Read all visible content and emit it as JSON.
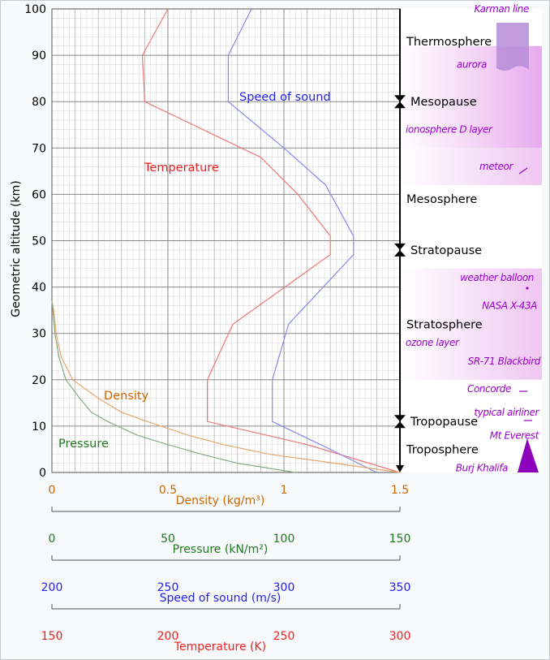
{
  "chart_data": {
    "type": "line",
    "y_axis": {
      "label": "Geometric altitude (km)",
      "range": [
        0,
        100
      ],
      "ticks": [
        "0",
        "10",
        "20",
        "30",
        "40",
        "50",
        "60",
        "70",
        "80",
        "90",
        "100"
      ]
    },
    "x_scale": {
      "range": [
        0,
        1.5
      ]
    },
    "grid": true,
    "series": [
      {
        "name": "Temperature",
        "color": "#ee7777",
        "label_color": "#ee2222",
        "points": [
          [
            1.5,
            0
          ],
          [
            1.1,
            6
          ],
          [
            0.67,
            11
          ],
          [
            0.67,
            20
          ],
          [
            0.78,
            32
          ],
          [
            1.2,
            47
          ],
          [
            1.2,
            51
          ],
          [
            1.06,
            60
          ],
          [
            0.9,
            68
          ],
          [
            0.4,
            80
          ],
          [
            0.39,
            90
          ],
          [
            0.5,
            100
          ]
        ]
      },
      {
        "name": "Speed of sound",
        "color": "#8888ee",
        "label_color": "#2222ee",
        "points": [
          [
            1.4,
            0
          ],
          [
            1.2,
            5
          ],
          [
            0.95,
            11
          ],
          [
            0.95,
            20
          ],
          [
            1.02,
            32
          ],
          [
            1.3,
            47
          ],
          [
            1.3,
            51
          ],
          [
            1.18,
            62
          ],
          [
            1.0,
            70
          ],
          [
            0.76,
            80
          ],
          [
            0.76,
            90
          ],
          [
            0.86,
            100
          ]
        ]
      },
      {
        "name": "Density",
        "color": "#e7a76a",
        "label_color": "#cc6600",
        "points": [
          [
            1.5,
            0
          ],
          [
            1.22,
            2
          ],
          [
            0.93,
            4
          ],
          [
            0.74,
            6
          ],
          [
            0.59,
            8
          ],
          [
            0.41,
            11
          ],
          [
            0.3,
            13
          ],
          [
            0.2,
            16
          ],
          [
            0.09,
            20
          ],
          [
            0.04,
            25
          ],
          [
            0.018,
            30
          ],
          [
            0.008,
            35
          ],
          [
            0.0,
            37
          ]
        ]
      },
      {
        "name": "Pressure",
        "color": "#88aa88",
        "label_color": "#227722",
        "points": [
          [
            1.05,
            0
          ],
          [
            0.8,
            2
          ],
          [
            0.64,
            4
          ],
          [
            0.5,
            6
          ],
          [
            0.37,
            8
          ],
          [
            0.24,
            11
          ],
          [
            0.17,
            13
          ],
          [
            0.12,
            16
          ],
          [
            0.06,
            20
          ],
          [
            0.03,
            25
          ],
          [
            0.013,
            30
          ],
          [
            0.0,
            37
          ]
        ]
      }
    ],
    "layer_boundaries": [
      {
        "label": "Mesopause",
        "altitude": 80
      },
      {
        "label": "Stratopause",
        "altitude": 48
      },
      {
        "label": "Tropopause",
        "altitude": 11
      }
    ],
    "layers": [
      {
        "label": "Thermosphere",
        "altitude": 93
      },
      {
        "label": "Mesosphere",
        "altitude": 59
      },
      {
        "label": "Stratosphere",
        "altitude": 32
      },
      {
        "label": "Troposphere",
        "altitude": 5
      }
    ],
    "features": [
      {
        "label": "Karman line",
        "altitude": 100
      },
      {
        "label": "aurora",
        "altitude": 88
      },
      {
        "label": "ionosphere D layer",
        "altitude": 74
      },
      {
        "label": "meteor",
        "altitude": 66
      },
      {
        "label": "weather balloon",
        "altitude": 42
      },
      {
        "label": "NASA X-43A",
        "altitude": 36
      },
      {
        "label": "ozone layer",
        "altitude": 28
      },
      {
        "label": "SR-71 Blackbird",
        "altitude": 24
      },
      {
        "label": "Concorde",
        "altitude": 18
      },
      {
        "label": "typical airliner",
        "altitude": 13
      },
      {
        "label": "Mt Everest",
        "altitude": 8
      },
      {
        "label": "Burj Khalifa",
        "altitude": 1
      }
    ],
    "scales": [
      {
        "name": "density",
        "label": "Density (kg/m³)",
        "color": "#cc6600",
        "ticks": [
          "0",
          "0.5",
          "1",
          "1.5"
        ]
      },
      {
        "name": "pressure",
        "label": "Pressure (kN/m²)",
        "color": "#227722",
        "ticks": [
          "0",
          "50",
          "100",
          "150"
        ]
      },
      {
        "name": "sound",
        "label": "Speed of sound (m/s)",
        "color": "#2222ee",
        "ticks": [
          "200",
          "250",
          "300",
          "350"
        ]
      },
      {
        "name": "temp",
        "label": "Temperature (K)",
        "color": "#ee2222",
        "ticks": [
          "150",
          "200",
          "250",
          "300"
        ]
      }
    ],
    "feature_color": "#9900cc"
  }
}
